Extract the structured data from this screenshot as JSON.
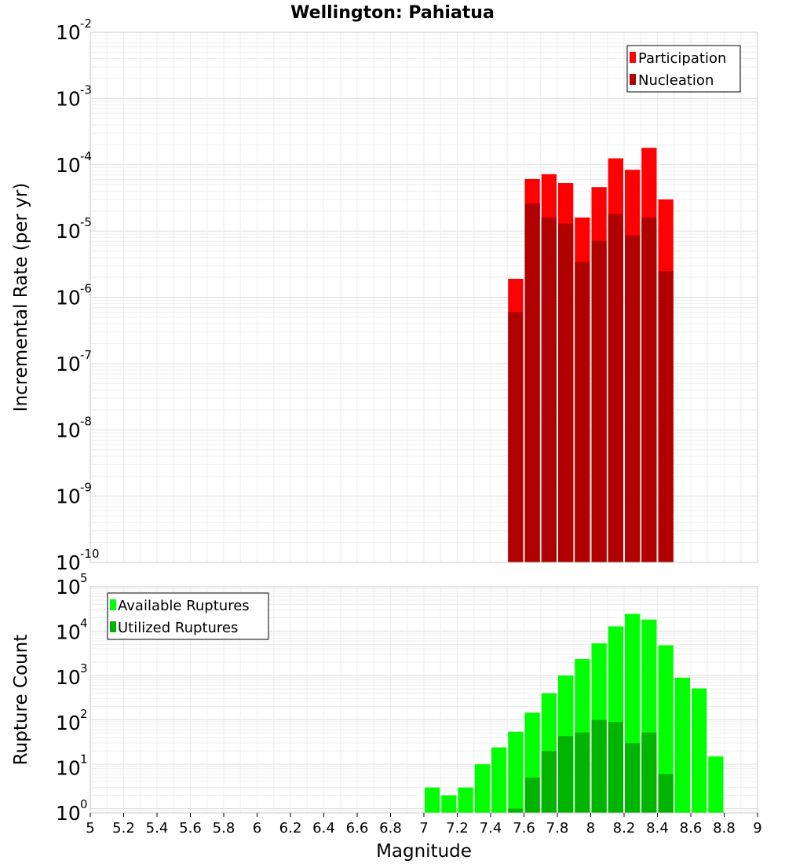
{
  "chart_data": [
    {
      "type": "bar",
      "title": "Wellington: Pahiatua",
      "xlabel": "Magnitude",
      "ylabel": "Incremental Rate (per yr)",
      "yscale": "log",
      "ylim": [
        1e-10,
        0.01
      ],
      "xlim": [
        5,
        9
      ],
      "legend_position": "top-right",
      "ytick_labels": [
        {
          "base": "10",
          "exp": "-2"
        },
        {
          "base": "10",
          "exp": "-3"
        },
        {
          "base": "10",
          "exp": "-4"
        },
        {
          "base": "10",
          "exp": "-5"
        },
        {
          "base": "10",
          "exp": "-6"
        },
        {
          "base": "10",
          "exp": "-7"
        },
        {
          "base": "10",
          "exp": "-8"
        },
        {
          "base": "10",
          "exp": "-9"
        },
        {
          "base": "10",
          "exp": "-10"
        }
      ],
      "series": [
        {
          "name": "Participation",
          "color": "#ff0000",
          "x": [
            7.55,
            7.65,
            7.75,
            7.85,
            7.95,
            8.05,
            8.15,
            8.25,
            8.35,
            8.45
          ],
          "values": [
            1.9e-06,
            6.1e-05,
            7.2e-05,
            5.3e-05,
            1.6e-05,
            4.6e-05,
            0.000125,
            8.4e-05,
            0.00018,
            3e-05
          ]
        },
        {
          "name": "Nucleation",
          "color": "#b00000",
          "x": [
            7.55,
            7.65,
            7.75,
            7.85,
            7.95,
            8.05,
            8.15,
            8.25,
            8.35,
            8.45
          ],
          "values": [
            6e-07,
            2.6e-05,
            1.6e-05,
            1.3e-05,
            3.4e-06,
            7.1e-06,
            1.8e-05,
            8.6e-06,
            1.6e-05,
            2.5e-06
          ]
        }
      ]
    },
    {
      "type": "bar",
      "title": "",
      "xlabel": "Magnitude",
      "ylabel": "Rupture Count",
      "yscale": "log",
      "ylim": [
        0.8,
        100000
      ],
      "xlim": [
        5,
        9
      ],
      "legend_position": "top-left",
      "xticks": [
        "5",
        "5.2",
        "5.4",
        "5.6",
        "5.8",
        "6",
        "6.2",
        "6.4",
        "6.6",
        "6.8",
        "7",
        "7.2",
        "7.4",
        "7.6",
        "7.8",
        "8",
        "8.2",
        "8.4",
        "8.6",
        "8.8",
        "9"
      ],
      "ytick_labels": [
        {
          "base": "10",
          "exp": "5"
        },
        {
          "base": "10",
          "exp": "4"
        },
        {
          "base": "10",
          "exp": "3"
        },
        {
          "base": "10",
          "exp": "2"
        },
        {
          "base": "10",
          "exp": "1"
        },
        {
          "base": "10",
          "exp": "0"
        }
      ],
      "series": [
        {
          "name": "Available Ruptures",
          "color": "#00ff00",
          "x": [
            7.05,
            7.15,
            7.25,
            7.35,
            7.45,
            7.55,
            7.65,
            7.75,
            7.85,
            7.95,
            8.05,
            8.15,
            8.25,
            8.35,
            8.45,
            8.55,
            8.65,
            8.75
          ],
          "values": [
            3,
            2,
            3,
            10,
            24,
            54,
            145,
            400,
            1000,
            2350,
            5300,
            12800,
            24500,
            18200,
            4800,
            890,
            510,
            15
          ]
        },
        {
          "name": "Utilized Ruptures",
          "color": "#00b400",
          "x": [
            7.55,
            7.65,
            7.75,
            7.85,
            7.95,
            8.05,
            8.15,
            8.25,
            8.35,
            8.45
          ],
          "values": [
            1,
            5,
            20,
            43,
            52,
            100,
            90,
            30,
            52,
            6
          ]
        }
      ]
    }
  ]
}
